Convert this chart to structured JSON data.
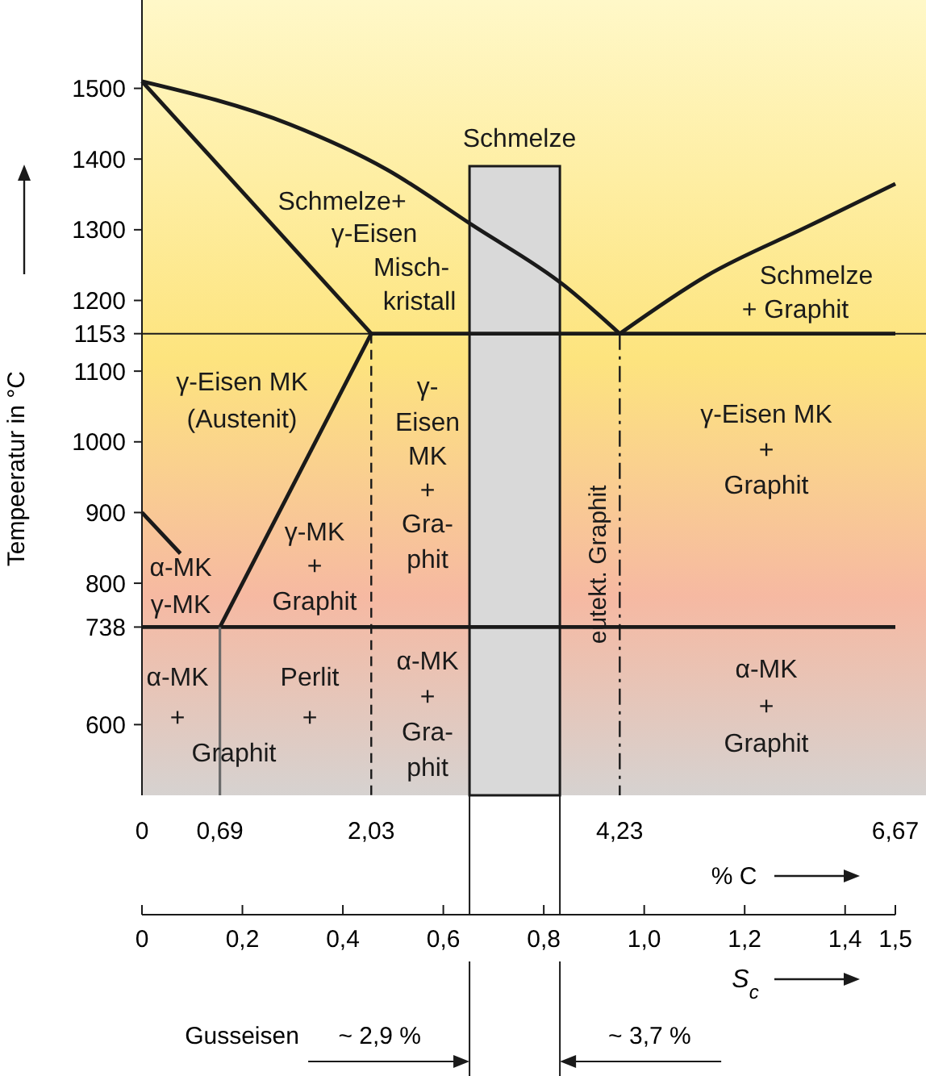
{
  "chart_data": {
    "type": "line",
    "xlabel": "% C",
    "ylabel": "Tempeeratur in °C",
    "x2label": "S$_{c}$",
    "xlim": [
      0,
      6.67
    ],
    "xticks": [
      0,
      {
        "value": 0.69,
        "label": "0,69"
      },
      {
        "value": 2.03,
        "label": "2,03"
      },
      {
        "value": 4.23,
        "label": "4,23"
      },
      {
        "value": 6.67,
        "label": "6,67"
      }
    ],
    "x2lim": [
      0,
      1.5
    ],
    "x2ticks": [
      0,
      {
        "value": 0.2,
        "label": "0,2"
      },
      {
        "value": 0.4,
        "label": "0,4"
      },
      {
        "value": 0.6,
        "label": "0,6"
      },
      {
        "value": 0.8,
        "label": "0,8"
      },
      {
        "value": 1.0,
        "label": "1,0"
      },
      {
        "value": 1.2,
        "label": "1,2"
      },
      {
        "value": 1.4,
        "label": "1,4"
      },
      {
        "value": 1.5,
        "label": "1,5"
      }
    ],
    "ylim": [
      500,
      1625
    ],
    "yticks": [
      600,
      738,
      800,
      900,
      1000,
      1100,
      1153,
      1200,
      1300,
      1400,
      1500
    ],
    "marker": "none",
    "ref_lines": [
      {
        "axis": "y",
        "value": 1153,
        "color": "#1a1a1a"
      }
    ],
    "series": [
      {
        "type": "area",
        "color": "#d9d9d9",
        "x": [
          2.9,
          3.7
        ],
        "values": [
          1390,
          1390
        ]
      },
      {
        "color": "#1a1a1a",
        "x": [
          0,
          1.31,
          2.17,
          2.93,
          3.74,
          4.23
        ],
        "values": [
          1510,
          1449,
          1385,
          1306,
          1221,
          1153
        ]
      },
      {
        "color": "#1a1a1a",
        "x": [
          4.23,
          5,
          5.9,
          6.67
        ],
        "values": [
          1153,
          1235,
          1305,
          1365
        ]
      },
      {
        "color": "#1a1a1a",
        "x": [
          0,
          2.03
        ],
        "values": [
          1510,
          1153
        ]
      },
      {
        "color": "#1a1a1a",
        "x": [
          2.03,
          6.67
        ],
        "values": [
          1153,
          1153
        ]
      },
      {
        "color": "#1a1a1a",
        "x": [
          2.03,
          0.69
        ],
        "values": [
          1153,
          738
        ]
      },
      {
        "color": "#1a1a1a",
        "x": [
          0,
          0.34
        ],
        "values": [
          900,
          842
        ]
      },
      {
        "color": "#1a1a1a",
        "x": [
          0,
          6.67
        ],
        "values": [
          738,
          738
        ]
      },
      {
        "color": "#6b6b6b",
        "x": [
          0.69,
          0.69
        ],
        "values": [
          738,
          500
        ]
      },
      {
        "color": "#1a1a1a",
        "line_style": "dashed",
        "x": [
          2.03,
          2.03
        ],
        "values": [
          1153,
          500
        ]
      },
      {
        "color": "#1a1a1a",
        "line_style": "dashdot",
        "name": "eutekt. Graphit",
        "x": [
          4.23,
          4.23
        ],
        "values": [
          1153,
          500
        ]
      }
    ],
    "annotations": [
      "Schmelze",
      "Schmelze+\nγ-Eisen\nMisch-\nkristall",
      "Schmelze\n+ Graphit",
      "γ-Eisen MK\n(Austenit)",
      "γ-\nEisen\nMK\n+\nGra-\nphit",
      "γ-Eisen MK\n+\nGraphit",
      "γ-MK\n+\nGraphit",
      "α-MK\nγ-MK",
      "α-MK\n+",
      "Perlit\n+",
      "Graphit",
      "α-MK\n+\nGra-\nphit",
      "α-MK\n+\nGraphit",
      "Gusseisen",
      "~ 2,9 %",
      "~ 3,7 %"
    ]
  }
}
